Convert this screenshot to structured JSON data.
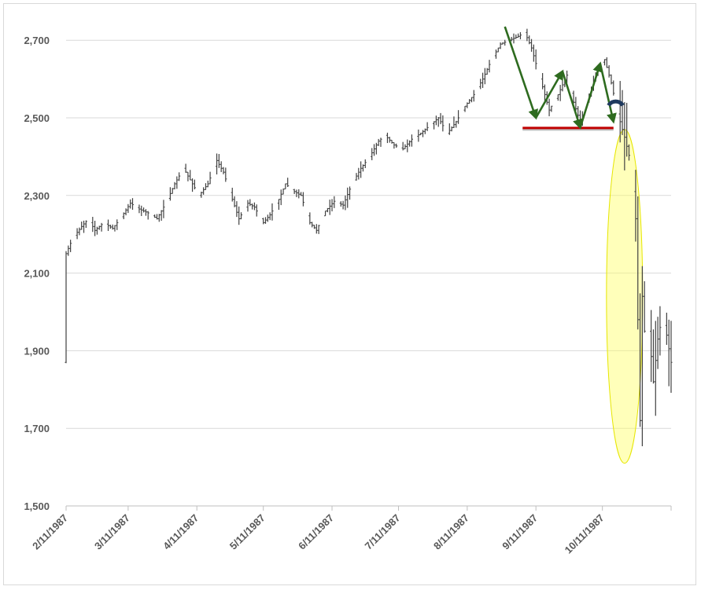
{
  "chart_data": {
    "type": "ohlc",
    "title": "",
    "xlabel": "",
    "ylabel": "",
    "ylim": [
      1500,
      2760
    ],
    "y_ticks": [
      "1,500",
      "1,700",
      "1,900",
      "2,100",
      "2,300",
      "2,500",
      "2,700"
    ],
    "y_tick_values": [
      1500,
      1700,
      1900,
      2100,
      2300,
      2500,
      2700
    ],
    "x_ticks": [
      "2/11/1987",
      "3/11/1987",
      "4/11/1987",
      "5/11/1987",
      "6/11/1987",
      "7/11/1987",
      "8/11/1987",
      "9/11/1987",
      "10/11/1987"
    ],
    "x_range": [
      "1987-02-11",
      "1987-11-11"
    ],
    "grid": "horizontal",
    "bar_color": "#404040",
    "price_path": [
      [
        "1987-02-11",
        2150
      ],
      [
        "1987-02-14",
        2190
      ],
      [
        "1987-02-18",
        2220
      ],
      [
        "1987-02-21",
        2240
      ],
      [
        "1987-02-24",
        2210
      ],
      [
        "1987-02-28",
        2230
      ],
      [
        "1987-03-04",
        2215
      ],
      [
        "1987-03-08",
        2245
      ],
      [
        "1987-03-12",
        2280
      ],
      [
        "1987-03-16",
        2265
      ],
      [
        "1987-03-20",
        2255
      ],
      [
        "1987-03-24",
        2240
      ],
      [
        "1987-03-28",
        2280
      ],
      [
        "1987-04-01",
        2330
      ],
      [
        "1987-04-05",
        2370
      ],
      [
        "1987-04-08",
        2340
      ],
      [
        "1987-04-12",
        2300
      ],
      [
        "1987-04-16",
        2330
      ],
      [
        "1987-04-20",
        2390
      ],
      [
        "1987-04-23",
        2360
      ],
      [
        "1987-04-27",
        2290
      ],
      [
        "1987-04-30",
        2240
      ],
      [
        "1987-05-04",
        2280
      ],
      [
        "1987-05-07",
        2270
      ],
      [
        "1987-05-11",
        2230
      ],
      [
        "1987-05-14",
        2250
      ],
      [
        "1987-05-18",
        2290
      ],
      [
        "1987-05-21",
        2330
      ],
      [
        "1987-05-25",
        2310
      ],
      [
        "1987-05-28",
        2300
      ],
      [
        "1987-06-01",
        2230
      ],
      [
        "1987-06-04",
        2210
      ],
      [
        "1987-06-08",
        2260
      ],
      [
        "1987-06-12",
        2285
      ],
      [
        "1987-06-16",
        2275
      ],
      [
        "1987-06-20",
        2330
      ],
      [
        "1987-06-24",
        2370
      ],
      [
        "1987-06-28",
        2400
      ],
      [
        "1987-07-02",
        2440
      ],
      [
        "1987-07-05",
        2455
      ],
      [
        "1987-07-09",
        2430
      ],
      [
        "1987-07-13",
        2420
      ],
      [
        "1987-07-17",
        2445
      ],
      [
        "1987-07-21",
        2460
      ],
      [
        "1987-07-25",
        2480
      ],
      [
        "1987-07-29",
        2500
      ],
      [
        "1987-08-02",
        2460
      ],
      [
        "1987-08-06",
        2490
      ],
      [
        "1987-08-10",
        2530
      ],
      [
        "1987-08-14",
        2560
      ],
      [
        "1987-08-18",
        2600
      ],
      [
        "1987-08-22",
        2650
      ],
      [
        "1987-08-26",
        2690
      ],
      [
        "1987-08-30",
        2700
      ],
      [
        "1987-09-03",
        2710
      ],
      [
        "1987-09-06",
        2720
      ],
      [
        "1987-09-09",
        2680
      ],
      [
        "1987-09-13",
        2600
      ],
      [
        "1987-09-17",
        2520
      ],
      [
        "1987-09-21",
        2560
      ],
      [
        "1987-09-25",
        2610
      ],
      [
        "1987-09-28",
        2540
      ],
      [
        "1987-10-01",
        2490
      ],
      [
        "1987-10-05",
        2560
      ],
      [
        "1987-10-09",
        2630
      ],
      [
        "1987-10-12",
        2650
      ],
      [
        "1987-10-15",
        2590
      ],
      [
        "1987-10-18",
        2510
      ],
      [
        "1987-10-21",
        2450
      ],
      [
        "1987-10-24",
        2380
      ],
      [
        "1987-10-26",
        2240
      ],
      [
        "1987-10-28",
        1720
      ],
      [
        "1987-10-29",
        2040
      ],
      [
        "1987-10-31",
        1860
      ],
      [
        "1987-11-01",
        1950
      ],
      [
        "1987-11-03",
        1820
      ],
      [
        "1987-11-05",
        1930
      ],
      [
        "1987-11-07",
        1990
      ],
      [
        "1987-11-09",
        1940
      ],
      [
        "1987-11-11",
        1870
      ]
    ],
    "annotations": [
      {
        "type": "horizontal-line",
        "name": "support-line",
        "y": 2474,
        "x_from": "1987-09-05",
        "x_to": "1987-10-16",
        "color": "#c00000"
      },
      {
        "type": "zigzag-arrows",
        "name": "pattern-arrows",
        "color": "#2e6b1f",
        "points": [
          [
            "1987-08-28",
            2735
          ],
          [
            "1987-09-11",
            2500
          ],
          [
            "1987-09-23",
            2620
          ],
          [
            "1987-10-01",
            2475
          ],
          [
            "1987-10-10",
            2640
          ],
          [
            "1987-10-16",
            2490
          ]
        ]
      },
      {
        "type": "arc",
        "name": "rejection-arc",
        "x": "1987-10-17",
        "y": 2540,
        "color": "#1f3a5f"
      },
      {
        "type": "ellipse",
        "name": "crash-highlight",
        "x": "1987-10-21",
        "y_from": 1610,
        "y_to": 2470,
        "color": "#ffff66"
      }
    ]
  }
}
